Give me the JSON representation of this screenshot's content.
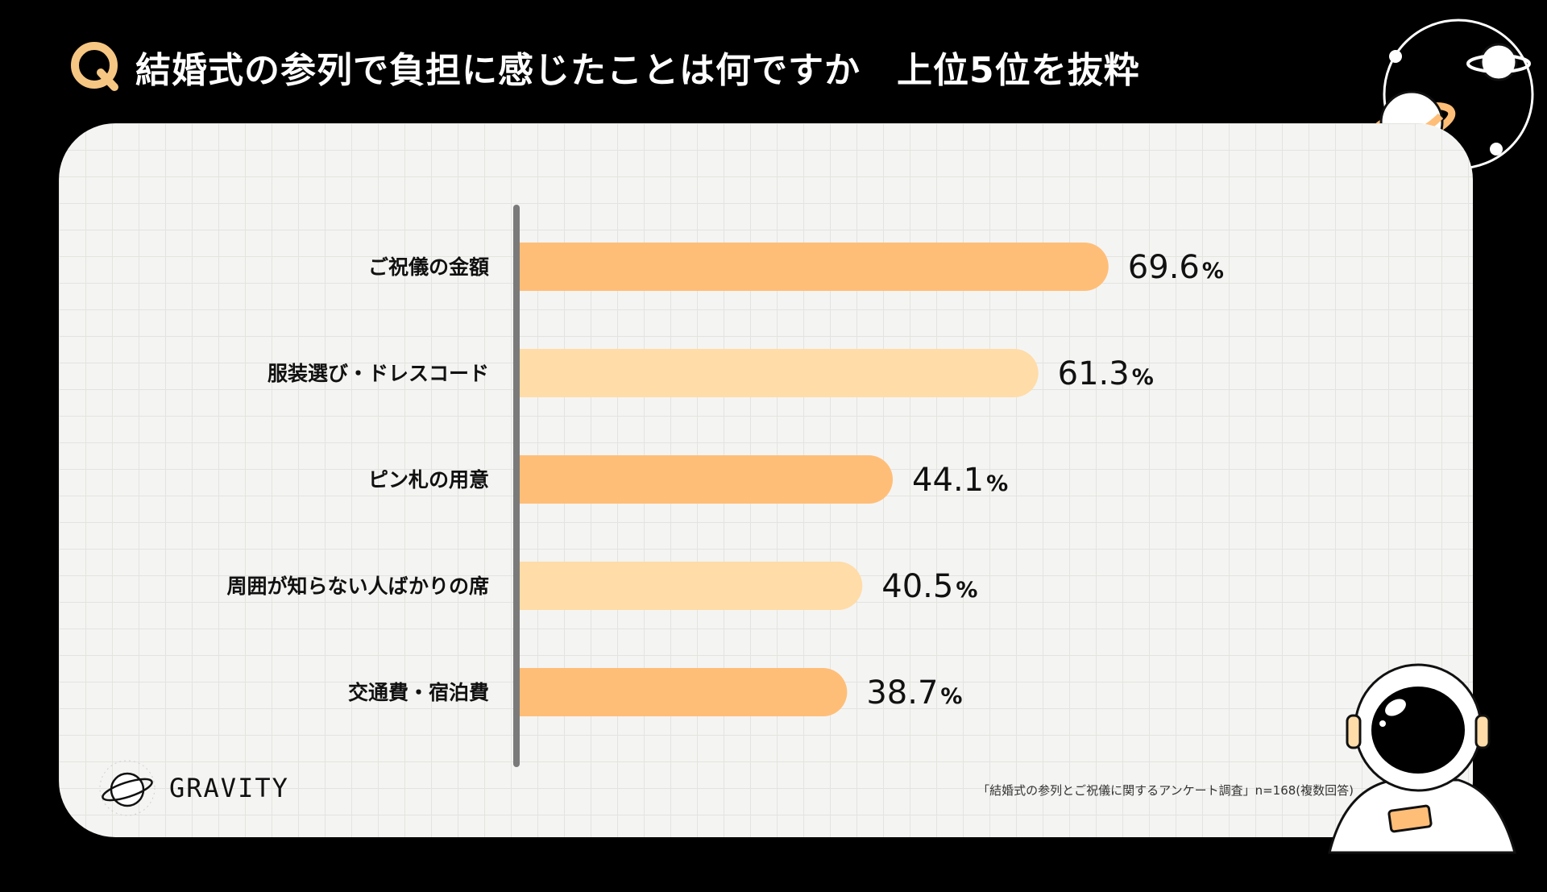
{
  "header": {
    "q_mark": "Q",
    "title": "結婚式の参列で負担に感じたことは何ですか　上位5位を抜粋"
  },
  "colors": {
    "bar_dark": "#ffbe78",
    "bar_light": "#ffdca8",
    "axis": "#7a7a7a",
    "q_badge": "#f6c783"
  },
  "chart_data": {
    "type": "bar",
    "orientation": "horizontal",
    "title": "結婚式の参列で負担に感じたことは何ですか　上位5位を抜粋",
    "unit": "%",
    "xlim": [
      0,
      100
    ],
    "categories": [
      "ご祝儀の金額",
      "服装選び・ドレスコード",
      "ピン札の用意",
      "周囲が知らない人ばかりの席",
      "交通費・宿泊費"
    ],
    "values": [
      69.6,
      61.3,
      44.1,
      40.5,
      38.7
    ],
    "value_labels": [
      "69.6",
      "61.3",
      "44.1",
      "40.5",
      "38.7"
    ]
  },
  "footer": {
    "brand": "GRAVITY",
    "source": "「結婚式の参列とご祝儀に関するアンケート調査」n=168(複数回答)"
  },
  "icons": {
    "brand_logo": "planet-logo-icon",
    "decoration": "planets-icon",
    "mascot": "astronaut-icon"
  }
}
